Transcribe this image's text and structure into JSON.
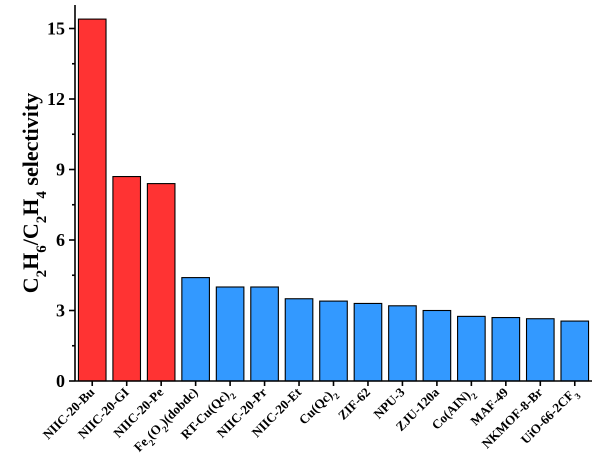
{
  "chart_data": {
    "type": "bar",
    "title": "",
    "xlabel": "",
    "ylabel": "C2H6/C2H4 selectivity",
    "ylabel_parts": [
      {
        "t": "C",
        "sub": false
      },
      {
        "t": "2",
        "sub": true
      },
      {
        "t": "H",
        "sub": false
      },
      {
        "t": "6",
        "sub": true
      },
      {
        "t": "/C",
        "sub": false
      },
      {
        "t": "2",
        "sub": true
      },
      {
        "t": "H",
        "sub": false
      },
      {
        "t": "4",
        "sub": true
      },
      {
        "t": " selectivity",
        "sub": false
      }
    ],
    "ylim": [
      0,
      16
    ],
    "yticks": [
      0,
      3,
      6,
      9,
      12,
      15
    ],
    "grid": false,
    "categories": [
      "NIIC-20-Bu",
      "NIIC-20-GI",
      "NIIC-20-Pe",
      "Fe2(O2)(dobdc)",
      "RT-Cu(Qc)2",
      "NIIC-20-Pr",
      "NIIC-20-Et",
      "Cu(Qc)2",
      "ZIF-62",
      "NPU-3",
      "ZJU-120a",
      "Co(AIN)2",
      "MAF-49",
      "NKMOF-8-Br",
      "UiO-66-2CF3"
    ],
    "category_label_parts": [
      [
        {
          "t": "NIIC-20-Bu",
          "sub": false
        }
      ],
      [
        {
          "t": "NIIC-20-GI",
          "sub": false
        }
      ],
      [
        {
          "t": "NIIC-20-Pe",
          "sub": false
        }
      ],
      [
        {
          "t": "Fe",
          "sub": false
        },
        {
          "t": "2",
          "sub": true
        },
        {
          "t": "(O",
          "sub": false
        },
        {
          "t": "2",
          "sub": true
        },
        {
          "t": ")(dobdc)",
          "sub": false
        }
      ],
      [
        {
          "t": "RT-Cu(Qc)",
          "sub": false
        },
        {
          "t": "2",
          "sub": true
        }
      ],
      [
        {
          "t": "NIIC-20-Pr",
          "sub": false
        }
      ],
      [
        {
          "t": "NIIC-20-Et",
          "sub": false
        }
      ],
      [
        {
          "t": "Cu(Qc)",
          "sub": false
        },
        {
          "t": "2",
          "sub": true
        }
      ],
      [
        {
          "t": "ZIF-62",
          "sub": false
        }
      ],
      [
        {
          "t": "NPU-3",
          "sub": false
        }
      ],
      [
        {
          "t": "ZJU-120a",
          "sub": false
        }
      ],
      [
        {
          "t": "Co(AIN)",
          "sub": false
        },
        {
          "t": "2",
          "sub": true
        }
      ],
      [
        {
          "t": "MAF-49",
          "sub": false
        }
      ],
      [
        {
          "t": "NKMOF-8-Br",
          "sub": false
        }
      ],
      [
        {
          "t": "UiO-66-2CF",
          "sub": false
        },
        {
          "t": "3",
          "sub": true
        }
      ]
    ],
    "values": [
      15.4,
      8.7,
      8.4,
      4.4,
      4.0,
      4.0,
      3.5,
      3.4,
      3.3,
      3.2,
      3.0,
      2.75,
      2.7,
      2.65,
      2.55
    ],
    "colors": [
      "#ff3333",
      "#ff3333",
      "#ff3333",
      "#3399ff",
      "#3399ff",
      "#3399ff",
      "#3399ff",
      "#3399ff",
      "#3399ff",
      "#3399ff",
      "#3399ff",
      "#3399ff",
      "#3399ff",
      "#3399ff",
      "#3399ff"
    ]
  }
}
